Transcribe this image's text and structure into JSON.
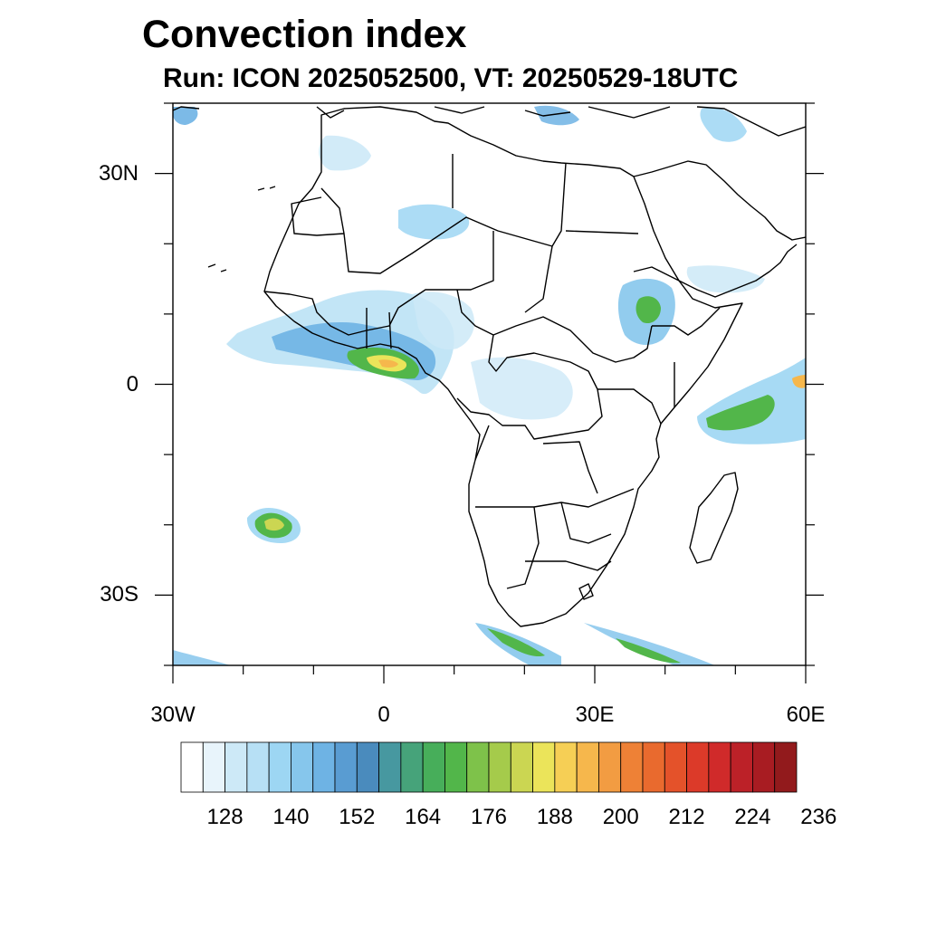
{
  "title": "Convection index",
  "subtitle": "Run: ICON 2025052500,  VT: 20250529-18UTC",
  "map": {
    "lon_range": [
      -30,
      60
    ],
    "lat_range": [
      -40,
      40
    ],
    "lat_ticks": [
      "30N",
      "0",
      "30S"
    ],
    "lat_tick_values": [
      30,
      0,
      -30
    ],
    "lon_ticks": [
      "30W",
      "0",
      "30E",
      "60E"
    ],
    "lon_tick_values": [
      -30,
      0,
      30,
      60
    ],
    "minor_lon_step": 10,
    "minor_lat_step": 10,
    "land_fill": "#ffffff",
    "coast_color": "#000000"
  },
  "colorbar": {
    "colors": [
      "#ffffff",
      "#e8f4fb",
      "#cde9f7",
      "#b7e0f5",
      "#9dd6f3",
      "#86c6ec",
      "#6eb3e4",
      "#599cd2",
      "#4a8bbd",
      "#4798a0",
      "#46a37a",
      "#47ae5a",
      "#52b64a",
      "#7ec24a",
      "#a5cb4b",
      "#cbd652",
      "#ebe45a",
      "#f6cf55",
      "#f6b74c",
      "#f29c42",
      "#ee8136",
      "#e96a2e",
      "#e4522a",
      "#dc3a29",
      "#d02a2a",
      "#bc2128",
      "#a81c22",
      "#921a1c"
    ],
    "labels": [
      "128",
      "140",
      "152",
      "164",
      "176",
      "188",
      "200",
      "212",
      "224",
      "236"
    ]
  },
  "convection_areas": [
    {
      "region": "West African coast / Gulf of Guinea",
      "max_level": 200
    },
    {
      "region": "Ethiopian highlands",
      "max_level": 176
    },
    {
      "region": "Indian Ocean east of equator",
      "max_level": 200
    },
    {
      "region": "South Atlantic cell",
      "max_level": 188
    },
    {
      "region": "Southern Ocean bands",
      "max_level": 176
    }
  ]
}
